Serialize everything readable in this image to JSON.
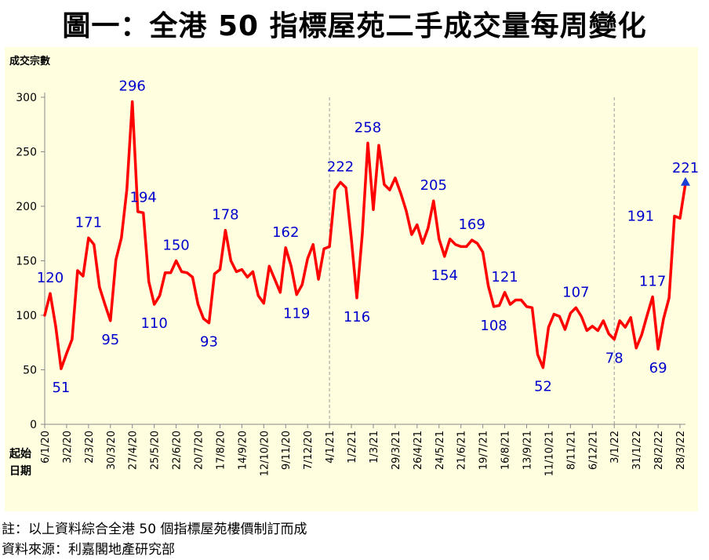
{
  "title": "圖一：全港 50 指標屋苑二手成交量每周變化",
  "notes": {
    "note": "註：以上資料綜合全港 50 個指標屋苑樓價制訂而成",
    "source": "資料來源：利嘉閣地產研究部"
  },
  "chart_data": {
    "type": "line",
    "title": "圖一：全港 50 指標屋苑二手成交量每周變化",
    "ylabel": "成交宗數",
    "xlabel": "起始日期",
    "ylim": [
      0,
      300
    ],
    "yticks": [
      0,
      50,
      100,
      150,
      200,
      250,
      300
    ],
    "grid": false,
    "line_color": "#ff0000",
    "label_color": "#0000cc",
    "x_tick_labels": [
      "6/1/20",
      "3/2/20",
      "2/3/20",
      "30/3/20",
      "27/4/20",
      "25/5/20",
      "22/6/20",
      "20/7/20",
      "17/8/20",
      "14/9/20",
      "12/10/20",
      "9/11/20",
      "7/12/20",
      "4/1/21",
      "1/2/21",
      "1/3/21",
      "29/3/21",
      "26/4/21",
      "24/5/21",
      "21/6/21",
      "19/7/21",
      "16/8/21",
      "13/9/21",
      "11/10/21",
      "8/11/21",
      "6/12/21",
      "3/1/22",
      "31/1/22",
      "28/2/22",
      "28/3/22"
    ],
    "year_dividers": [
      "4/1/21",
      "3/1/22"
    ],
    "series": [
      {
        "values": [
          100,
          120,
          90,
          51,
          65,
          78,
          141,
          136,
          171,
          165,
          126,
          110,
          95,
          151,
          171,
          215,
          296,
          195,
          194,
          131,
          110,
          118,
          139,
          139,
          150,
          140,
          139,
          135,
          110,
          97,
          93,
          138,
          142,
          178,
          150,
          140,
          142,
          135,
          140,
          118,
          111,
          145,
          133,
          121,
          162,
          145,
          119,
          128,
          152,
          165,
          133,
          161,
          163,
          215,
          222,
          217,
          170,
          116,
          175,
          258,
          197,
          256,
          220,
          215,
          226,
          212,
          196,
          174,
          183,
          166,
          180,
          205,
          170,
          154,
          170,
          165,
          163,
          163,
          169,
          166,
          158,
          127,
          108,
          109,
          121,
          110,
          114,
          114,
          108,
          107,
          64,
          52,
          89,
          101,
          99,
          87,
          102,
          107,
          99,
          86,
          90,
          86,
          95,
          83,
          78,
          95,
          89,
          98,
          70,
          82,
          100,
          117,
          69,
          97,
          116,
          191,
          189,
          221
        ]
      }
    ],
    "data_labels": [
      {
        "index": 1,
        "value": 120,
        "pos": "above"
      },
      {
        "index": 3,
        "value": 51,
        "pos": "below"
      },
      {
        "index": 8,
        "value": 171,
        "pos": "above"
      },
      {
        "index": 12,
        "value": 95,
        "pos": "below"
      },
      {
        "index": 16,
        "value": 296,
        "pos": "above"
      },
      {
        "index": 18,
        "value": 194,
        "pos": "above"
      },
      {
        "index": 20,
        "value": 110,
        "pos": "below"
      },
      {
        "index": 24,
        "value": 150,
        "pos": "above"
      },
      {
        "index": 30,
        "value": 93,
        "pos": "below"
      },
      {
        "index": 33,
        "value": 178,
        "pos": "above"
      },
      {
        "index": 44,
        "value": 162,
        "pos": "above"
      },
      {
        "index": 46,
        "value": 119,
        "pos": "below"
      },
      {
        "index": 54,
        "value": 222,
        "pos": "above"
      },
      {
        "index": 57,
        "value": 116,
        "pos": "below"
      },
      {
        "index": 59,
        "value": 258,
        "pos": "above"
      },
      {
        "index": 71,
        "value": 205,
        "pos": "above"
      },
      {
        "index": 73,
        "value": 154,
        "pos": "below"
      },
      {
        "index": 78,
        "value": 169,
        "pos": "above"
      },
      {
        "index": 82,
        "value": 108,
        "pos": "below"
      },
      {
        "index": 84,
        "value": 121,
        "pos": "above"
      },
      {
        "index": 91,
        "value": 52,
        "pos": "below"
      },
      {
        "index": 97,
        "value": 107,
        "pos": "above"
      },
      {
        "index": 104,
        "value": 78,
        "pos": "below"
      },
      {
        "index": 111,
        "value": 117,
        "pos": "above"
      },
      {
        "index": 112,
        "value": 69,
        "pos": "below"
      },
      {
        "index": 115,
        "value": 191,
        "pos": "left"
      },
      {
        "index": 117,
        "value": 221,
        "pos": "above",
        "marker": "triangle"
      }
    ]
  }
}
